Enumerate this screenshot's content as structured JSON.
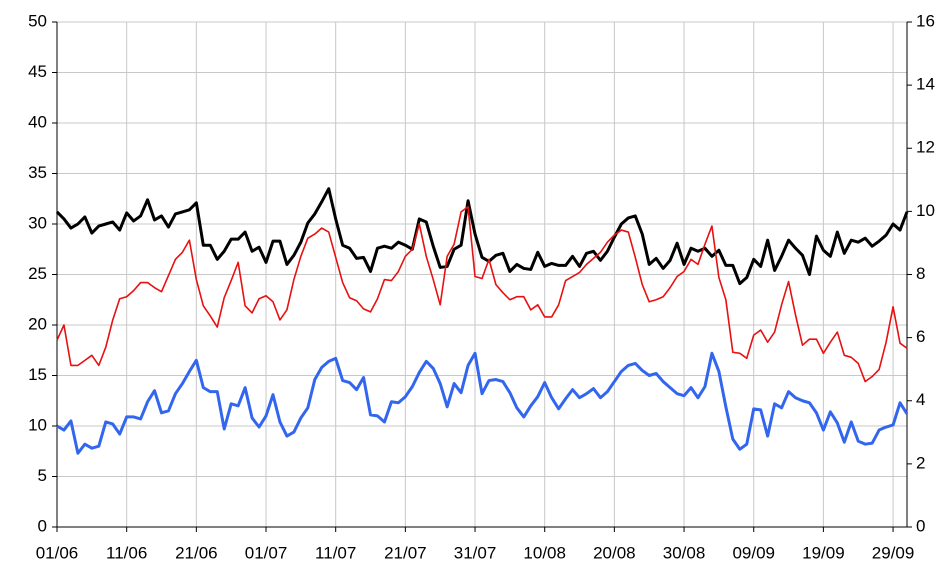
{
  "chart_data": {
    "type": "line",
    "categories": [
      "01/06",
      null,
      null,
      null,
      null,
      null,
      null,
      null,
      null,
      null,
      "11/06",
      null,
      null,
      null,
      null,
      null,
      null,
      null,
      null,
      null,
      "21/06",
      null,
      null,
      null,
      null,
      null,
      null,
      null,
      null,
      null,
      "01/07",
      null,
      null,
      null,
      null,
      null,
      null,
      null,
      null,
      null,
      "11/07",
      null,
      null,
      null,
      null,
      null,
      null,
      null,
      null,
      null,
      "21/07",
      null,
      null,
      null,
      null,
      null,
      null,
      null,
      null,
      null,
      "31/07",
      null,
      null,
      null,
      null,
      null,
      null,
      null,
      null,
      null,
      "10/08",
      null,
      null,
      null,
      null,
      null,
      null,
      null,
      null,
      null,
      "20/08",
      null,
      null,
      null,
      null,
      null,
      null,
      null,
      null,
      null,
      "30/08",
      null,
      null,
      null,
      null,
      null,
      null,
      null,
      null,
      null,
      "09/09",
      null,
      null,
      null,
      null,
      null,
      null,
      null,
      null,
      null,
      "19/09",
      null,
      null,
      null,
      null,
      null,
      null,
      null,
      null,
      null,
      "29/09",
      null,
      null
    ],
    "series": [
      {
        "color": "#000000",
        "values": [
          31.2,
          30.5,
          29.6,
          30.0,
          30.7,
          29.1,
          29.8,
          30.0,
          30.2,
          29.4,
          31.1,
          30.3,
          30.8,
          32.4,
          30.4,
          30.8,
          29.7,
          31.0,
          31.2,
          31.4,
          32.1,
          27.9,
          27.9,
          26.5,
          27.3,
          28.5,
          28.5,
          29.2,
          27.3,
          27.7,
          26.2,
          28.3,
          28.3,
          26.0,
          26.9,
          28.2,
          30.1,
          31.0,
          32.2,
          33.5,
          30.5,
          27.9,
          27.6,
          26.6,
          26.7,
          25.3,
          27.6,
          27.8,
          27.6,
          28.2,
          27.9,
          27.5,
          30.5,
          30.2,
          27.8,
          25.7,
          25.8,
          27.5,
          27.9,
          32.3,
          29.0,
          26.7,
          26.3,
          26.9,
          27.1,
          25.3,
          26.0,
          25.6,
          25.5,
          27.2,
          25.8,
          26.1,
          25.9,
          25.9,
          26.8,
          25.8,
          27.1,
          27.3,
          26.4,
          27.3,
          28.7,
          30.0,
          30.6,
          30.8,
          29.0,
          26.0,
          26.6,
          25.6,
          26.4,
          28.1,
          26.0,
          27.6,
          27.3,
          27.6,
          26.8,
          27.4,
          25.9,
          25.9,
          24.1,
          24.7,
          26.5,
          25.8,
          28.4,
          25.4,
          26.8,
          28.4,
          27.6,
          26.9,
          25.0,
          28.8,
          27.4,
          26.8,
          29.2,
          27.1,
          28.4,
          28.2,
          28.6,
          27.8,
          28.3,
          28.9,
          30.0,
          29.4,
          31.2
        ]
      },
      {
        "color": "#e81010",
        "values": [
          18.5,
          20.0,
          16.0,
          16.0,
          16.5,
          17.0,
          16.0,
          17.8,
          20.5,
          22.6,
          22.8,
          23.4,
          24.2,
          24.2,
          23.7,
          23.3,
          24.9,
          26.5,
          27.2,
          28.4,
          24.5,
          21.9,
          20.9,
          19.8,
          22.7,
          24.4,
          26.2,
          21.9,
          21.2,
          22.6,
          22.9,
          22.3,
          20.5,
          21.5,
          24.5,
          26.8,
          28.6,
          29.0,
          29.6,
          29.2,
          26.7,
          24.2,
          22.7,
          22.4,
          21.6,
          21.3,
          22.6,
          24.5,
          24.4,
          25.3,
          26.8,
          27.5,
          30.0,
          26.8,
          24.5,
          22.0,
          26.8,
          28.0,
          31.2,
          31.7,
          24.8,
          24.6,
          26.5,
          24.0,
          23.2,
          22.5,
          22.8,
          22.8,
          21.5,
          22.0,
          20.8,
          20.8,
          22.0,
          24.4,
          24.8,
          25.2,
          26.0,
          26.6,
          27.2,
          28.2,
          28.9,
          29.4,
          29.2,
          26.7,
          24.0,
          22.3,
          22.5,
          22.8,
          23.7,
          24.8,
          25.3,
          26.5,
          26.0,
          28.0,
          29.8,
          24.7,
          22.5,
          17.3,
          17.2,
          16.7,
          19.0,
          19.5,
          18.3,
          19.3,
          22.0,
          24.3,
          21.0,
          18.0,
          18.6,
          18.6,
          17.2,
          18.3,
          19.3,
          17.0,
          16.8,
          16.2,
          14.4,
          14.9,
          15.6,
          18.3,
          21.8,
          18.2,
          17.7
        ]
      },
      {
        "color": "#3366ee",
        "values": [
          10.0,
          9.6,
          10.5,
          7.3,
          8.2,
          7.8,
          8.0,
          10.4,
          10.2,
          9.2,
          10.9,
          10.9,
          10.7,
          12.4,
          13.5,
          11.3,
          11.5,
          13.2,
          14.2,
          15.4,
          16.5,
          13.8,
          13.4,
          13.4,
          9.7,
          12.2,
          12.0,
          13.8,
          10.8,
          9.9,
          11.0,
          13.1,
          10.4,
          9.0,
          9.4,
          10.8,
          11.8,
          14.6,
          15.8,
          16.4,
          16.7,
          14.5,
          14.3,
          13.6,
          14.8,
          11.1,
          11.0,
          10.4,
          12.4,
          12.3,
          12.9,
          13.9,
          15.3,
          16.4,
          15.7,
          14.2,
          11.9,
          14.2,
          13.3,
          16.0,
          17.2,
          13.2,
          14.5,
          14.6,
          14.4,
          13.3,
          11.8,
          10.9,
          12.0,
          12.9,
          14.3,
          12.8,
          11.7,
          12.7,
          13.6,
          12.8,
          13.2,
          13.7,
          12.8,
          13.4,
          14.4,
          15.4,
          16.0,
          16.2,
          15.5,
          15.0,
          15.2,
          14.4,
          13.8,
          13.2,
          13.0,
          13.8,
          12.8,
          13.9,
          17.2,
          15.4,
          11.9,
          8.7,
          7.7,
          8.2,
          11.7,
          11.6,
          9.0,
          12.2,
          11.8,
          13.4,
          12.8,
          12.5,
          12.3,
          11.3,
          9.6,
          11.4,
          10.3,
          8.4,
          10.4,
          8.5,
          8.2,
          8.3,
          9.6,
          9.9,
          10.1,
          12.3,
          11.2
        ]
      }
    ],
    "ylim": [
      0,
      50
    ],
    "yticks": [
      0,
      5,
      10,
      15,
      20,
      25,
      30,
      35,
      40,
      45,
      50
    ],
    "y2lim": [
      0,
      16
    ],
    "y2ticks": [
      0,
      2,
      4,
      6,
      8,
      10,
      12,
      14,
      16
    ],
    "grid": true
  }
}
